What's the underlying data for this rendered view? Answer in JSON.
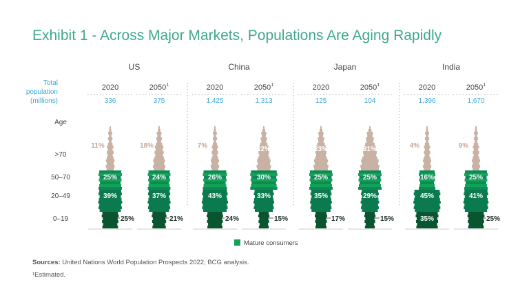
{
  "title": "Exhibit 1 - Across Major Markets, Populations Are Aging Rapidly",
  "chart_data": {
    "type": "population-pyramid",
    "row_label": "Total population (millions)",
    "age_label": "Age",
    "age_groups": [
      ">70",
      "50–70",
      "20–49",
      "0–19"
    ],
    "legend": "Mature consumers",
    "countries": [
      {
        "name": "US",
        "pyramids": [
          {
            "year": "2020",
            "population": "336",
            "shares": [
              11,
              25,
              39,
              25
            ]
          },
          {
            "year": "2050",
            "sup": "1",
            "population": "375",
            "shares": [
              18,
              24,
              37,
              21
            ]
          }
        ]
      },
      {
        "name": "China",
        "pyramids": [
          {
            "year": "2020",
            "population": "1,425",
            "shares": [
              7,
              26,
              43,
              24
            ]
          },
          {
            "year": "2050",
            "sup": "1",
            "population": "1,313",
            "shares": [
              22,
              30,
              33,
              15
            ]
          }
        ]
      },
      {
        "name": "Japan",
        "pyramids": [
          {
            "year": "2020",
            "population": "125",
            "shares": [
              23,
              25,
              35,
              17
            ]
          },
          {
            "year": "2050",
            "sup": "1",
            "population": "104",
            "shares": [
              31,
              25,
              29,
              15
            ]
          }
        ]
      },
      {
        "name": "India",
        "pyramids": [
          {
            "year": "2020",
            "population": "1,396",
            "shares": [
              4,
              16,
              45,
              35
            ]
          },
          {
            "year": "2050",
            "sup": "1",
            "population": "1,670",
            "shares": [
              9,
              25,
              41,
              25
            ]
          }
        ]
      }
    ],
    "colors": {
      "over70": "#c9b2a3",
      "mature": "#14a254",
      "mature_alt": "#0c8a58",
      "adult": "#0b7a4e",
      "young": "#08552f",
      "population_text": "#3da8d8",
      "header_text": "#444444",
      "over70_text": "#c3a695"
    }
  },
  "footnotes": {
    "sources_label": "Sources:",
    "sources_text": " United Nations World Population Prospects 2022; BCG analysis.",
    "estimated": "¹Estimated."
  }
}
